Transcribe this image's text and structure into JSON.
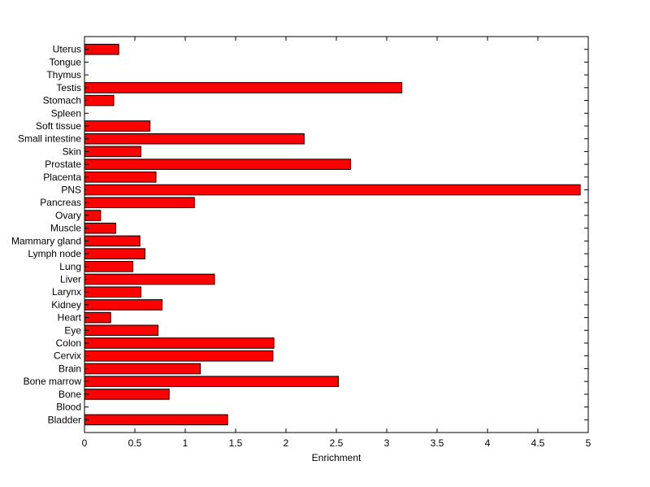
{
  "chart_data": {
    "type": "bar",
    "orientation": "horizontal",
    "title": "",
    "xlabel": "Enrichment",
    "ylabel": "",
    "xlim": [
      0,
      5
    ],
    "xticks": [
      "0",
      "0.5",
      "1",
      "1.5",
      "2",
      "2.5",
      "3",
      "3.5",
      "4",
      "4.5",
      "5"
    ],
    "grid": false,
    "bar_color": "#ff0000",
    "categories": [
      "Bladder",
      "Blood",
      "Bone",
      "Bone marrow",
      "Brain",
      "Cervix",
      "Colon",
      "Eye",
      "Heart",
      "Kidney",
      "Larynx",
      "Liver",
      "Lung",
      "Lymph node",
      "Mammary gland",
      "Muscle",
      "Ovary",
      "Pancreas",
      "PNS",
      "Placenta",
      "Prostate",
      "Skin",
      "Small intestine",
      "Soft tissue",
      "Spleen",
      "Stomach",
      "Testis",
      "Thymus",
      "Tongue",
      "Uterus"
    ],
    "values": [
      1.42,
      0,
      0.84,
      2.52,
      1.15,
      1.87,
      1.88,
      0.73,
      0.26,
      0.77,
      0.56,
      1.29,
      0.48,
      0.6,
      0.55,
      0.31,
      0.16,
      1.09,
      4.92,
      0.71,
      2.64,
      0.56,
      2.18,
      0.65,
      0,
      0.29,
      3.15,
      0,
      0,
      0.34
    ]
  }
}
